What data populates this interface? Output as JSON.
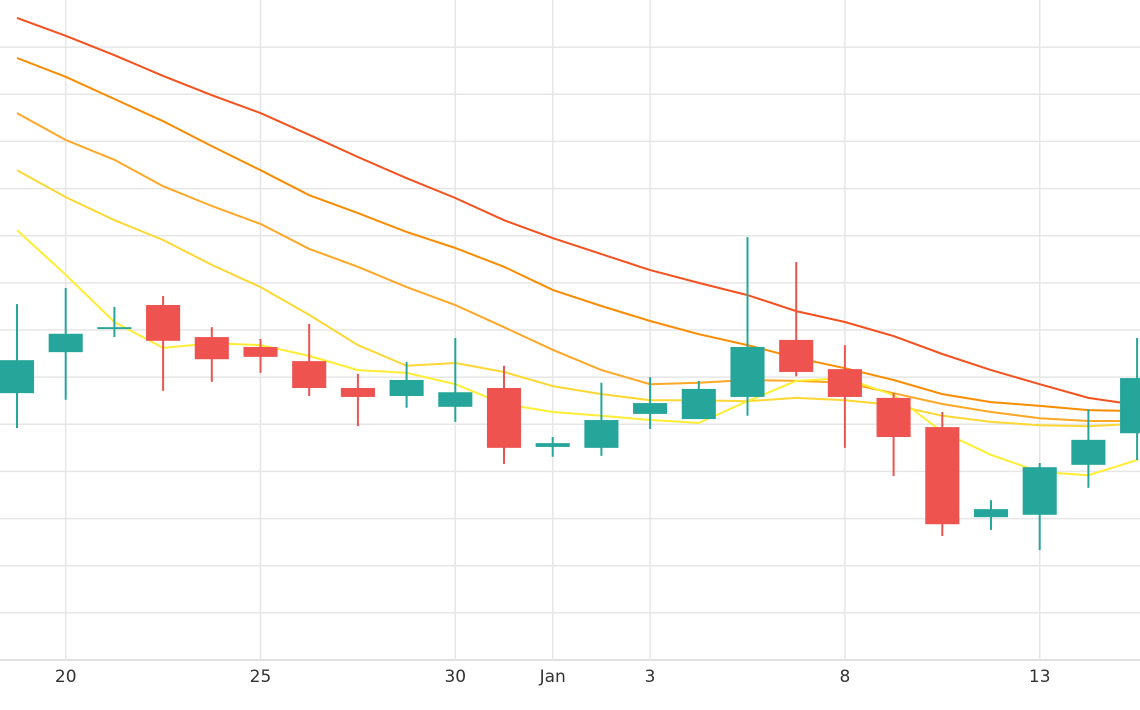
{
  "chart_data": {
    "type": "candlestick",
    "categories": [
      null,
      "20",
      null,
      null,
      null,
      "25",
      null,
      null,
      null,
      "30",
      null,
      "Jan",
      null,
      "3",
      null,
      null,
      null,
      "8",
      null,
      null,
      null,
      "13",
      null,
      null
    ],
    "open": [
      56.6,
      65.3,
      70.2,
      75.3,
      68.5,
      66.4,
      63.4,
      57.7,
      56.0,
      53.7,
      57.7,
      45.2,
      45.0,
      52.2,
      51.1,
      55.8,
      67.9,
      61.7,
      55.6,
      49.4,
      30.3,
      30.8,
      41.4,
      48.1
    ],
    "high": [
      75.5,
      78.9,
      74.9,
      77.2,
      70.6,
      68.1,
      71.3,
      60.7,
      63.2,
      68.3,
      62.4,
      47.3,
      58.8,
      60.0,
      59.2,
      89.7,
      84.4,
      66.8,
      56.6,
      52.6,
      33.9,
      41.8,
      53.2,
      68.3
    ],
    "low": [
      49.2,
      55.2,
      68.5,
      57.1,
      59.0,
      60.9,
      56.0,
      49.6,
      53.5,
      50.5,
      41.6,
      43.1,
      43.3,
      49.0,
      51.1,
      51.8,
      60.2,
      45.0,
      39.0,
      26.3,
      27.6,
      23.3,
      36.5,
      42.4
    ],
    "close": [
      63.6,
      69.2,
      70.6,
      67.7,
      63.8,
      64.3,
      57.7,
      55.8,
      59.4,
      56.8,
      45.0,
      46.0,
      50.9,
      54.5,
      57.5,
      66.4,
      61.1,
      55.8,
      47.3,
      28.8,
      32.0,
      40.9,
      46.7,
      59.8
    ],
    "up_color": "#26a69a",
    "down_color": "#ef5350",
    "lines": [
      {
        "color": "#f4511e",
        "values": [
          136.2,
          132.4,
          128.3,
          123.9,
          119.8,
          116.0,
          111.4,
          106.7,
          102.2,
          98.0,
          93.3,
          89.5,
          86.1,
          82.7,
          80.0,
          77.4,
          74.0,
          71.7,
          68.7,
          64.9,
          61.5,
          58.5,
          55.6,
          54.1
        ]
      },
      {
        "color": "#fb8c00",
        "values": [
          127.7,
          123.7,
          119.0,
          114.3,
          109.0,
          103.9,
          98.6,
          94.8,
          90.8,
          87.4,
          83.4,
          78.5,
          75.1,
          71.9,
          69.1,
          66.8,
          64.1,
          61.9,
          59.4,
          56.4,
          54.7,
          53.9,
          53.0,
          52.8
        ]
      },
      {
        "color": "#ffa726",
        "values": [
          116.0,
          110.3,
          106.1,
          100.5,
          96.3,
          92.5,
          87.2,
          83.4,
          79.1,
          75.3,
          70.6,
          65.8,
          61.5,
          58.5,
          58.8,
          59.4,
          59.2,
          58.8,
          56.6,
          54.3,
          52.6,
          51.3,
          50.7,
          50.7
        ]
      },
      {
        "color": "#fdd835",
        "values": [
          103.9,
          98.2,
          93.3,
          89.1,
          83.8,
          79.1,
          73.2,
          66.8,
          62.4,
          63.0,
          61.1,
          58.1,
          56.4,
          55.1,
          55.1,
          54.9,
          55.6,
          55.1,
          54.1,
          51.8,
          50.5,
          49.8,
          49.6,
          50.1
        ]
      },
      {
        "color": "#ffee33",
        "values": [
          91.2,
          81.7,
          71.7,
          66.2,
          67.2,
          66.8,
          64.5,
          61.5,
          60.9,
          58.5,
          54.3,
          52.6,
          51.8,
          50.9,
          50.3,
          54.9,
          59.2,
          59.8,
          56.2,
          48.4,
          43.5,
          39.9,
          39.2,
          42.4
        ]
      }
    ],
    "ylim": [
      0,
      140
    ],
    "yticks": [
      0,
      10,
      20,
      30,
      40,
      50,
      60,
      70,
      80,
      90,
      100,
      110,
      120,
      130
    ],
    "grid": true
  }
}
